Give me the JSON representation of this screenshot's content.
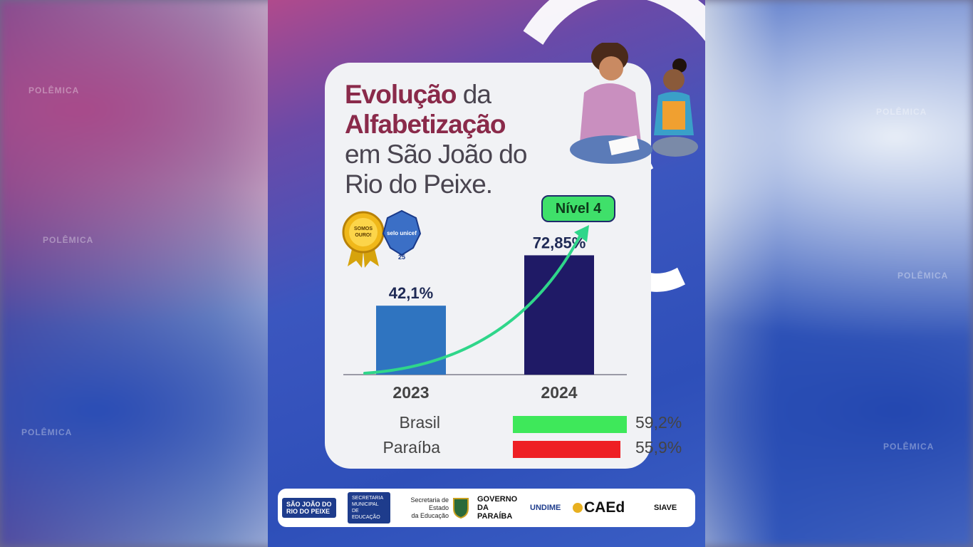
{
  "title": {
    "line1_accent": "Evolução",
    "line1_rest": " da",
    "line2": "Alfabetização",
    "line3": "em São João do",
    "line4": "Rio do Peixe."
  },
  "badges": {
    "gold": "SOMOS OURO!",
    "unicef": "selo unicef",
    "unicef_num": "25"
  },
  "nivel_label": "Nível 4",
  "chart_data": {
    "type": "bar",
    "categories": [
      "2023",
      "2024"
    ],
    "values": [
      42.1,
      72.85
    ],
    "value_labels": [
      "42,1%",
      "72,85%"
    ],
    "colors": [
      "#2f74c0",
      "#1f1a66"
    ],
    "trend_arrow_color": "#2fd68a",
    "ylim": [
      0,
      100
    ]
  },
  "comparison": [
    {
      "label": "Brasil",
      "value": 59.2,
      "value_label": "59,2%",
      "color": "#3ee85a"
    },
    {
      "label": "Paraíba",
      "value": 55.9,
      "value_label": "55,9%",
      "color": "#ee1f24"
    }
  ],
  "footer": {
    "sjrp_line1": "SÃO JOÃO DO",
    "sjrp_line2": "RIO DO PEIXE",
    "secretaria_line1": "SECRETARIA",
    "secretaria_line2": "MUNICIPAL DE",
    "secretaria_line3": "EDUCAÇÃO",
    "estado_line1": "Secretaria de Estado",
    "estado_line2": "da Educação",
    "governo_line1": "GOVERNO",
    "governo_line2": "DA PARAÍBA",
    "undime": "UNDIME",
    "caed": "CAEd",
    "siave": "SIAVE"
  },
  "watermark": "POLÊMICA"
}
